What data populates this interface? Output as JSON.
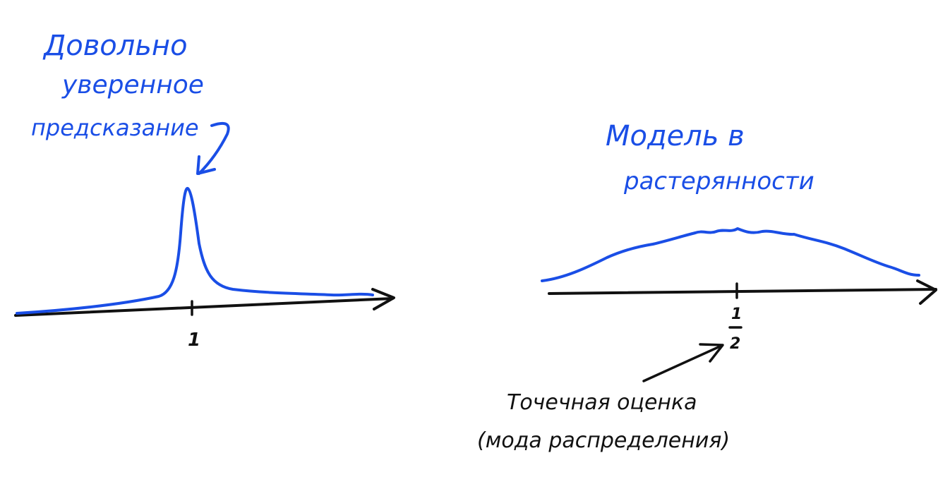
{
  "colors": {
    "ink_blue": "#1a4ee6",
    "ink_black": "#111111",
    "background": "#ffffff"
  },
  "left_panel": {
    "annotation_lines": [
      "Довольно",
      "уверенное",
      "предсказание"
    ],
    "tick_label": "1"
  },
  "right_panel": {
    "annotation_lines": [
      "Модель в",
      "растерянности"
    ],
    "tick_label_numerator": "1",
    "tick_label_denominator": "2",
    "point_estimate_lines": [
      "Точечная оценка",
      "(мода распределения)"
    ]
  }
}
